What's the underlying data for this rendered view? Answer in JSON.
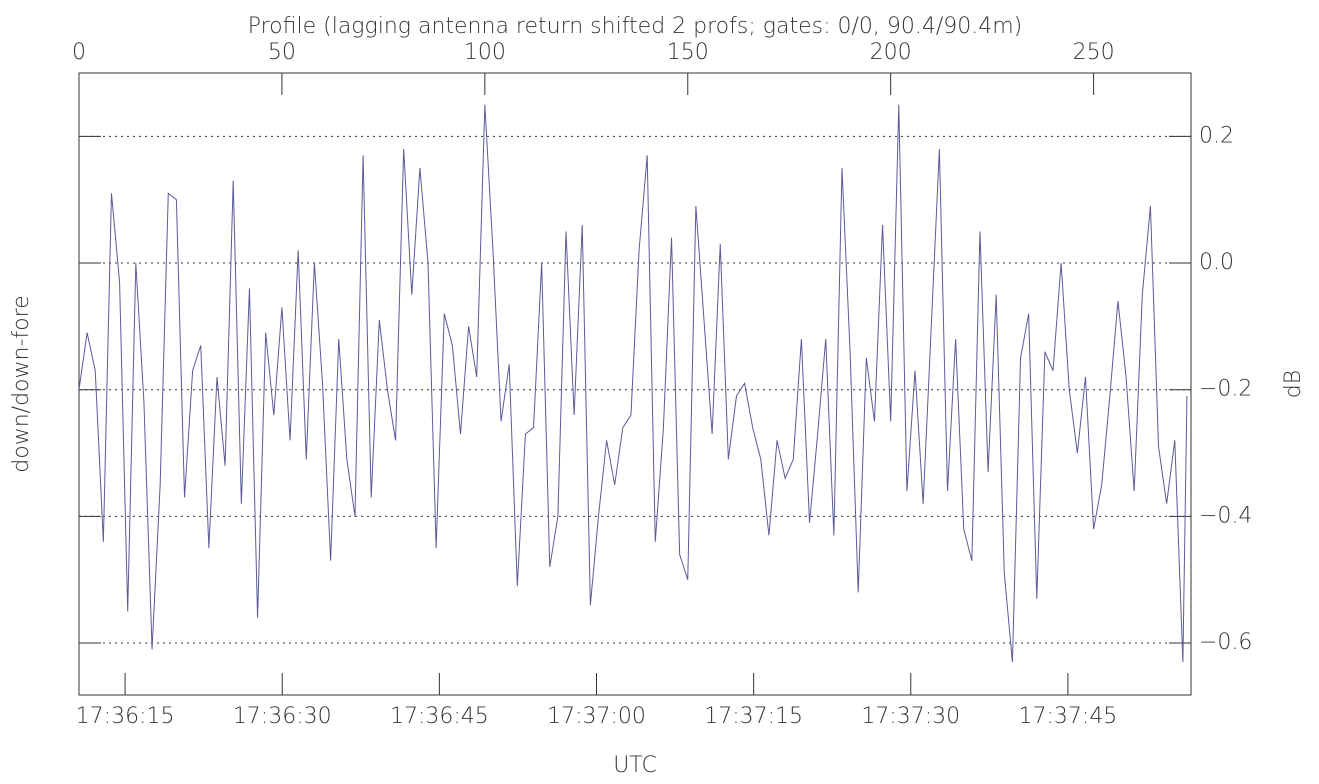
{
  "chart_data": {
    "type": "line",
    "title": "Profile (lagging antenna return shifted 2 profs; gates: 0/0, 90.4/90.4m)",
    "ylabel": "down/down-fore",
    "y2label": "dB",
    "x2label": "UTC",
    "xlim": [
      0,
      274
    ],
    "xticks": [
      0,
      50,
      100,
      150,
      200,
      250
    ],
    "x2lim": [
      63370.6,
      63476.75
    ],
    "x2ticks": [
      {
        "value": 63375,
        "label": "17:36:15"
      },
      {
        "value": 63390,
        "label": "17:36:30"
      },
      {
        "value": 63405,
        "label": "17:36:45"
      },
      {
        "value": 63420,
        "label": "17:37:00"
      },
      {
        "value": 63435,
        "label": "17:37:15"
      },
      {
        "value": 63450,
        "label": "17:37:30"
      },
      {
        "value": 63465,
        "label": "17:37:45"
      }
    ],
    "ylim": [
      -0.682,
      0.3
    ],
    "yticks": [
      {
        "value": -0.6,
        "label": "−0.6"
      },
      {
        "value": -0.4,
        "label": "−0.4"
      },
      {
        "value": -0.2,
        "label": "−0.2"
      },
      {
        "value": 0,
        "label": "0.0"
      },
      0.2
    ],
    "grid": true,
    "series": [
      {
        "color": "#5b5b99",
        "x": [
          0,
          2,
          4,
          6,
          8,
          10,
          12,
          14,
          16,
          18,
          20,
          22,
          24,
          26,
          28,
          30,
          32,
          34,
          36,
          38,
          40,
          42,
          44,
          46,
          48,
          50,
          52,
          54,
          56,
          58,
          60,
          62,
          64,
          66,
          68,
          70,
          72,
          74,
          76,
          78,
          80,
          82,
          84,
          86,
          88,
          90,
          92,
          94,
          96,
          98,
          100,
          102,
          104,
          106,
          108,
          110,
          112,
          114,
          116,
          118,
          120,
          122,
          124,
          126,
          128,
          130,
          132,
          134,
          136,
          138,
          140,
          142,
          144,
          146,
          148,
          150,
          152,
          154,
          156,
          158,
          160,
          162,
          164,
          166,
          168,
          170,
          172,
          174,
          176,
          178,
          180,
          182,
          184,
          186,
          188,
          190,
          192,
          194,
          196,
          198,
          200,
          202,
          204,
          206,
          208,
          210,
          212,
          214,
          216,
          218,
          220,
          222,
          224,
          226,
          228,
          230,
          232,
          234,
          236,
          238,
          240,
          242,
          244,
          246,
          248,
          250,
          252,
          254,
          256,
          258,
          260,
          262,
          264,
          266,
          268,
          270,
          272,
          273
        ],
        "values": [
          -0.2,
          -0.11,
          -0.17,
          -0.44,
          0.11,
          -0.03,
          -0.55,
          0.0,
          -0.22,
          -0.61,
          -0.35,
          0.11,
          0.1,
          -0.37,
          -0.17,
          -0.13,
          -0.45,
          -0.18,
          -0.32,
          0.13,
          -0.38,
          -0.04,
          -0.56,
          -0.11,
          -0.24,
          -0.07,
          -0.28,
          0.02,
          -0.31,
          0.0,
          -0.19,
          -0.47,
          -0.12,
          -0.31,
          -0.4,
          0.17,
          -0.37,
          -0.09,
          -0.2,
          -0.28,
          0.18,
          -0.05,
          0.15,
          0.0,
          -0.45,
          -0.08,
          -0.13,
          -0.27,
          -0.1,
          -0.18,
          0.25,
          0.02,
          -0.25,
          -0.16,
          -0.51,
          -0.27,
          -0.26,
          0.0,
          -0.48,
          -0.4,
          0.05,
          -0.24,
          0.06,
          -0.54,
          -0.4,
          -0.28,
          -0.35,
          -0.26,
          -0.24,
          0.02,
          0.17,
          -0.44,
          -0.26,
          0.04,
          -0.46,
          -0.5,
          0.09,
          -0.09,
          -0.27,
          0.03,
          -0.31,
          -0.21,
          -0.19,
          -0.26,
          -0.31,
          -0.43,
          -0.28,
          -0.34,
          -0.31,
          -0.12,
          -0.41,
          -0.27,
          -0.12,
          -0.43,
          0.15,
          -0.14,
          -0.52,
          -0.15,
          -0.25,
          0.06,
          -0.25,
          0.25,
          -0.36,
          -0.17,
          -0.38,
          -0.1,
          0.18,
          -0.36,
          -0.12,
          -0.42,
          -0.47,
          0.05,
          -0.33,
          -0.05,
          -0.49,
          -0.63,
          -0.15,
          -0.08,
          -0.53,
          -0.14,
          -0.17,
          0.0,
          -0.2,
          -0.3,
          -0.18,
          -0.42,
          -0.35,
          -0.21,
          -0.06,
          -0.18,
          -0.36,
          -0.05,
          0.09,
          -0.29,
          -0.38,
          -0.28,
          -0.63,
          -0.21
        ]
      }
    ]
  }
}
